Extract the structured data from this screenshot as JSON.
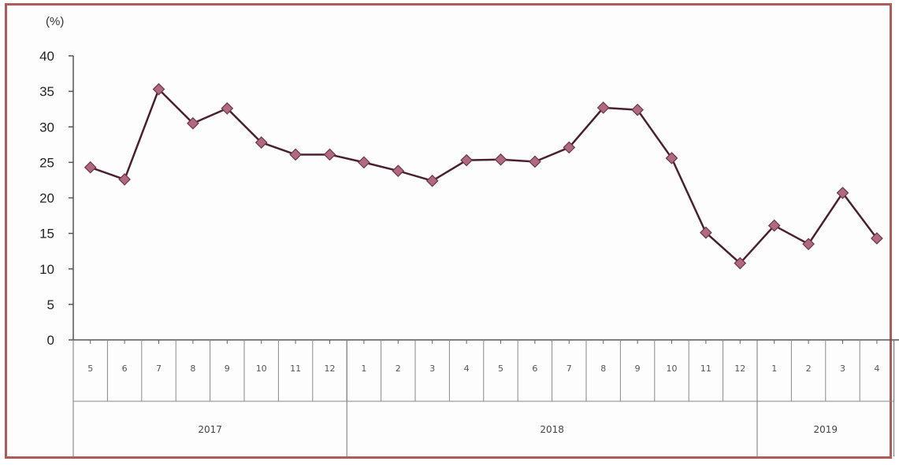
{
  "chart_data": {
    "type": "line",
    "unit_label": "(%)",
    "ylim": [
      0,
      40
    ],
    "yticks": [
      0,
      5,
      10,
      15,
      20,
      25,
      30,
      35,
      40
    ],
    "years": [
      {
        "label": "2017",
        "months": [
          "5",
          "6",
          "7",
          "8",
          "9",
          "10",
          "11",
          "12"
        ]
      },
      {
        "label": "2018",
        "months": [
          "1",
          "2",
          "3",
          "4",
          "5",
          "6",
          "7",
          "8",
          "9",
          "10",
          "11",
          "12"
        ]
      },
      {
        "label": "2019",
        "months": [
          "1",
          "2",
          "3",
          "4"
        ]
      }
    ],
    "values": [
      24.3,
      22.6,
      35.3,
      30.5,
      32.6,
      27.8,
      26.1,
      26.1,
      25.0,
      23.8,
      22.4,
      25.3,
      25.4,
      25.1,
      27.1,
      32.7,
      32.4,
      25.6,
      15.1,
      10.8,
      16.1,
      13.5,
      20.7,
      14.3
    ],
    "grid": false,
    "colors": {
      "line": "#4a2030",
      "marker": "#b06a80",
      "marker_stroke": "#6e3448",
      "frame": "#b05a5a"
    }
  }
}
